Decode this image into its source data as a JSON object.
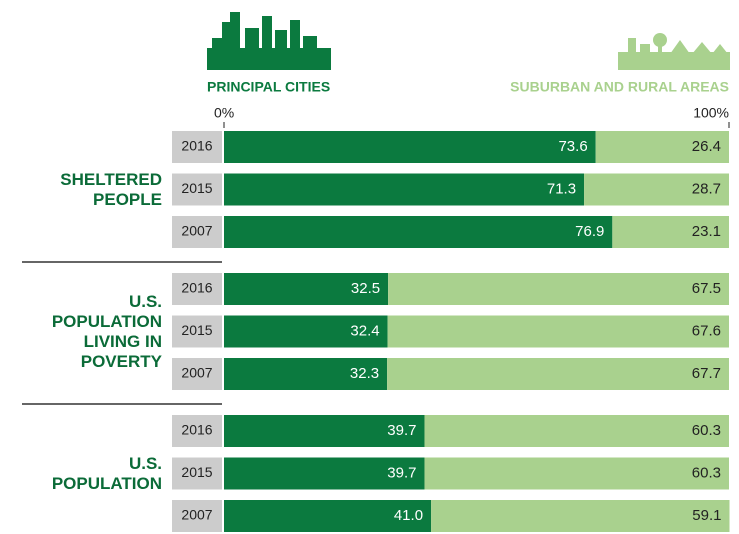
{
  "chart_data": {
    "type": "stacked-barh",
    "groups": [
      {
        "label": "SHELTERED PEOPLE",
        "categories": [
          "2016",
          "2015",
          "2007"
        ]
      },
      {
        "label": "U.S. POPULATION LIVING IN POVERTY",
        "categories": [
          "2016",
          "2015",
          "2007"
        ]
      },
      {
        "label": "U.S. POPULATION",
        "categories": [
          "2016",
          "2015",
          "2007"
        ]
      }
    ],
    "series": [
      {
        "name": "PRINCIPAL CITIES",
        "color": "#0b7a3f",
        "values": [
          73.6,
          71.3,
          76.9,
          32.5,
          32.4,
          32.3,
          39.7,
          39.7,
          41.0
        ],
        "value_labels": [
          "73.6",
          "71.3",
          "76.9",
          "32.5",
          "32.4",
          "32.3",
          "39.7",
          "39.7",
          "41.0"
        ]
      },
      {
        "name": "SUBURBAN AND RURAL AREAS",
        "color": "#a9d18e",
        "values": [
          26.4,
          28.7,
          23.1,
          67.5,
          67.6,
          67.7,
          60.3,
          60.3,
          59.1
        ]
      }
    ],
    "xlim": [
      0,
      100
    ],
    "xticks": [
      {
        "value": 0,
        "label": "0%"
      },
      {
        "value": 100,
        "label": "100%"
      }
    ]
  }
}
